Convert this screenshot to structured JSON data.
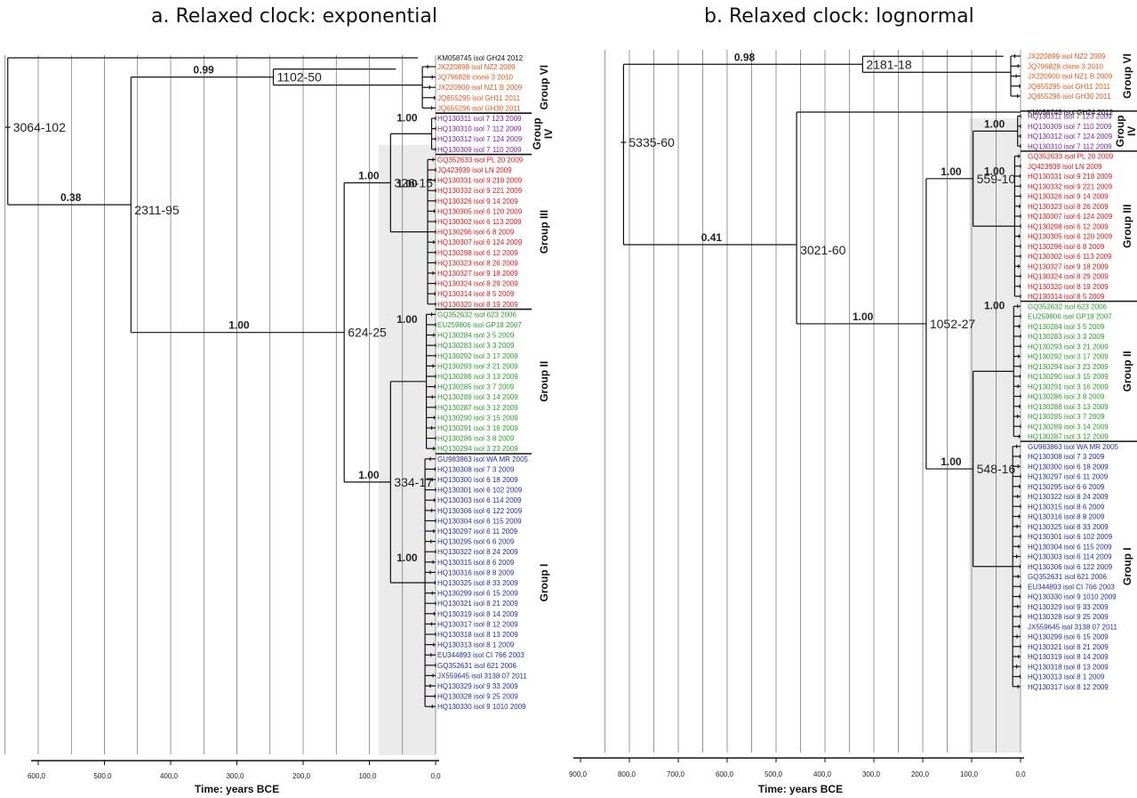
{
  "panels": [
    {
      "id": "a",
      "title": "a. Relaxed clock: exponential",
      "axis_label": "Time: years BCE",
      "ticks": [
        "600,0",
        "500,0",
        "400,0",
        "300,0",
        "200,0",
        "100,0",
        "0,0"
      ],
      "tick_values": [
        600,
        500,
        400,
        300,
        200,
        100,
        0
      ],
      "root": {
        "label": "3064-102",
        "time": 646
      },
      "nodes": [
        {
          "label": "1102-50",
          "time": 245,
          "posterior": "0.99",
          "parent_time": 460
        },
        {
          "label": "2311-95",
          "time": 460,
          "posterior": "0.38",
          "parent_time": 646
        },
        {
          "label": "624-25",
          "time": 138,
          "posterior": "1.00",
          "parent_time": 460
        },
        {
          "label": "326-15",
          "time": 68,
          "posterior": "1.00",
          "parent_time": 138
        },
        {
          "label": "334-17",
          "time": 68,
          "posterior": "1.00",
          "parent_time": 138
        }
      ],
      "subclade_posteriors": [
        "1.00",
        "1.00",
        "1.00",
        "1.00"
      ],
      "groups": [
        {
          "name": "Group VI",
          "color": "#e8561c",
          "taxa": [
            "JX220899 isol NZ2 2009",
            "JQ796828 clone 3 2010",
            "JX220900 isol NZ1 B 2009",
            "JQ655295 isol GH11 2011",
            "JQ655296 isol GH30 2011"
          ]
        },
        {
          "name": "Group IV",
          "color": "#7b1fa2",
          "taxa": [
            "HQ130311 isol 7 123 2009",
            "HQ130310 isol 7 112 2009",
            "HQ130312 isol 7 124 2009",
            "HQ130309 isol 7 110 2009"
          ]
        },
        {
          "name": "Group III",
          "color": "#e01515",
          "taxa": [
            "GQ352633 isol PL 20 2009",
            "JQ423939 isol LN 2009",
            "HQ130331 isol 9 218 2009",
            "HQ130332 isol 9 221 2009",
            "HQ130326 isol 9 14 2009",
            "HQ130305 isol 6 120 2009",
            "HQ130302 isol 6 113 2009",
            "HQ130296 isol 6 8 2009",
            "HQ130307 isol 6 124 2009",
            "HQ130298 isol 6 12 2009",
            "HQ130323 isol 8 26 2009",
            "HQ130327 isol 9 18 2009",
            "HQ130324 isol 8 29 2009",
            "HQ130314 isol 8 5 2009",
            "HQ130320 isol 8 19 2009"
          ]
        },
        {
          "name": "Group II",
          "color": "#2a9d2a",
          "taxa": [
            "GQ352632 isol 623 2006",
            "EU259806 isol GP18 2007",
            "HQ130284 isol 3 5 2009",
            "HQ130283 isol 3 3 2009",
            "HQ130292 isol 3 17 2009",
            "HQ130293 isol 3 21 2009",
            "HQ130288 isol 3 13 2009",
            "HQ130285 isol 3 7 2009",
            "HQ130289 isol 3 14 2009",
            "HQ130287 isol 3 12 2009",
            "HQ130290 isol 3 15 2009",
            "HQ130291 isol 3 16 2009",
            "HQ130286 isol 3 8 2009",
            "HQ130294 isol 3 23 2009"
          ]
        },
        {
          "name": "Group I",
          "color": "#1f2f9e",
          "taxa": [
            "GU983863 isol WA MR 2005",
            "HQ130308 isol 7 3 2009",
            "HQ130300 isol 6 18 2009",
            "HQ130301 isol 6 102 2009",
            "HQ130303 isol 6 114 2009",
            "HQ130306 isol 6 122 2009",
            "HQ130304 isol 6 115 2009",
            "HQ130297 isol 6 11 2009",
            "HQ130295 isol 6 6 2009",
            "HQ130322 isol 8 24 2009",
            "HQ130315 isol 8 6 2009",
            "HQ130316 isol 8 8 2009",
            "HQ130325 isol 8 33 2009",
            "HQ130299 isol 6 15 2009",
            "HQ130321 isol 8 21 2009",
            "HQ130319 isol 8 14 2009",
            "HQ130317 isol 8 12 2009",
            "HQ130318 isol 8 13 2009",
            "HQ130313 isol 8 1 2009",
            "EU344893 isol CI 766 2003",
            "GQ352631 isol 621 2006",
            "JX559645 isol 3138 07 2011",
            "HQ130329 isol 9 33 2009",
            "HQ130328 isol 9 25 2009",
            "HQ130330 isol 9 1010 2009"
          ]
        }
      ],
      "outgroup": "KM058745 isol GH24 2012"
    },
    {
      "id": "b",
      "title": "b. Relaxed clock: lognormal",
      "axis_label": "Time: years BCE",
      "ticks": [
        "900,0",
        "800,0",
        "700,0",
        "600,0",
        "500,0",
        "400,0",
        "300,0",
        "200,0",
        "100,0",
        "0,0"
      ],
      "tick_values": [
        900,
        800,
        700,
        600,
        500,
        400,
        300,
        200,
        100,
        0
      ],
      "root": {
        "label": "5335-60",
        "time": 812
      },
      "nodes": [
        {
          "label": "2181-18",
          "time": 323,
          "posterior": "0.98",
          "parent_time": 812
        },
        {
          "label": "3021-60",
          "time": 458,
          "posterior": "0.41",
          "parent_time": 812
        },
        {
          "label": "1052-27",
          "time": 193,
          "posterior": "1.00",
          "parent_time": 458
        },
        {
          "label": "559-10",
          "time": 97,
          "posterior": "1.00",
          "parent_time": 193
        },
        {
          "label": "548-16",
          "time": 97,
          "posterior": "1.00",
          "parent_time": 193
        }
      ],
      "subclade_posteriors": [
        "1.00",
        "1.00",
        "1.00"
      ],
      "groups": [
        {
          "name": "Group VI",
          "color": "#e8561c",
          "taxa": [
            "JX220899 isol NZ2 2009",
            "JQ796828 clone 3 2010",
            "JX220900 isol NZ1 B 2009",
            "JQ655295 isol GH11 2011",
            "JQ655296 isol GH30 2011"
          ]
        },
        {
          "name": "Group IV",
          "color": "#7b1fa2",
          "taxa": [
            "HQ130311 isol 7 123 2009",
            "HQ130309 isol 7 110 2009",
            "HQ130312 isol 7 124 2009",
            "HQ130310 isol 7 112 2009"
          ]
        },
        {
          "name": "Group III",
          "color": "#e01515",
          "taxa": [
            "GQ352633 isol PL 20 2009",
            "JQ423939 isol LN 2009",
            "HQ130331 isol 9 218 2009",
            "HQ130332 isol 9 221 2009",
            "HQ130326 isol 9 14 2009",
            "HQ130323 isol 8 26 2009",
            "HQ130307 isol 6 124 2009",
            "HQ130298 isol 6 12 2009",
            "HQ130305 isol 6 120 2009",
            "HQ130296 isol 6 8 2009",
            "HQ130302 isol 6 113 2009",
            "HQ130327 isol 9 18 2009",
            "HQ130324 isol 8 29 2009",
            "HQ130320 isol 8 19 2009",
            "HQ130314 isol 8 5 2009"
          ]
        },
        {
          "name": "Group II",
          "color": "#2a9d2a",
          "taxa": [
            "GQ352632 isol 623 2006",
            "EU259806 isol GP18 2007",
            "HQ130284 isol 3 5 2009",
            "HQ130283 isol 3 3 2009",
            "HQ130293 isol 3 21 2009",
            "HQ130292 isol 3 17 2009",
            "HQ130294 isol 3 23 2009",
            "HQ130290 isol 3 15 2009",
            "HQ130291 isol 3 16 2009",
            "HQ130286 isol 3 8 2009",
            "HQ130288 isol 3 13 2009",
            "HQ130285 isol 3 7 2009",
            "HQ130289 isol 3 14 2009",
            "HQ130287 isol 3 12 2009"
          ]
        },
        {
          "name": "Group I",
          "color": "#1f2f9e",
          "taxa": [
            "GU983863 isol WA MR 2005",
            "HQ130308 isol 7 3 2009",
            "HQ130300 isol 6 18 2009",
            "HQ130297 isol 6 11 2009",
            "HQ130295 isol 6 6 2009",
            "HQ130322 isol 8 24 2009",
            "HQ130315 isol 8 6 2009",
            "HQ130316 isol 8 8 2009",
            "HQ130325 isol 8 33 2009",
            "HQ130301 isol 6 102 2009",
            "HQ130304 isol 6 115 2009",
            "HQ130303 isol 6 114 2009",
            "HQ130306 isol 6 122 2009",
            "GQ352631 isol 621 2006",
            "EU344893 isol CI 766 2003",
            "HQ130330 isol 9 1010 2009",
            "HQ130329 isol 9 33 2009",
            "HQ130328 isol 9 25 2009",
            "JX559645 isol 3138 07 2011",
            "HQ130299 isol 6 15 2009",
            "HQ130321 isol 8 21 2009",
            "HQ130319 isol 8 14 2009",
            "HQ130318 isol 8 13 2009",
            "HQ130313 isol 8 1 2009",
            "HQ130317 isol 8 12 2009"
          ]
        }
      ],
      "outgroup": "KM058745 isol GH24 2012"
    }
  ]
}
